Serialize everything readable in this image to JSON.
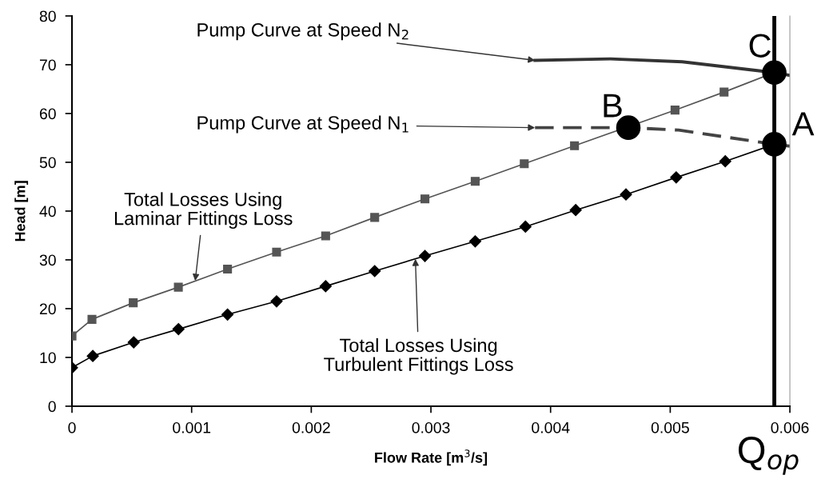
{
  "chart_data": {
    "type": "line",
    "xlabel": "Flow Rate [m$^{3}$/s]",
    "ylabel": "Head [m]",
    "xlim": [
      0,
      0.006
    ],
    "ylim": [
      0,
      80
    ],
    "xticks": [
      0,
      0.001,
      0.002,
      0.003,
      0.004,
      0.005,
      0.006
    ],
    "yticks": [
      0,
      10,
      20,
      30,
      40,
      50,
      60,
      70,
      80
    ],
    "grid": false,
    "legend": false,
    "series": [
      {
        "color": "#555555",
        "marker": "square",
        "line_style": "solid",
        "x": [
          0,
          0.000167,
          0.000512,
          0.000889,
          0.0013,
          0.00171,
          0.00212,
          0.00253,
          0.00295,
          0.00337,
          0.00378,
          0.0042,
          0.00462,
          0.00504,
          0.00545,
          0.00587
        ],
        "values": [
          14.4,
          17.8,
          21.2,
          24.4,
          28.1,
          31.6,
          34.9,
          38.7,
          42.5,
          46.1,
          49.7,
          53.4,
          null,
          60.7,
          64.4,
          68.4
        ]
      },
      {
        "color": "#000000",
        "marker": "diamond",
        "line_style": "solid",
        "x": [
          0,
          0.000174,
          0.000516,
          0.00089,
          0.0013,
          0.00171,
          0.00212,
          0.00253,
          0.00295,
          0.00337,
          0.00379,
          0.00421,
          0.00463,
          0.00505,
          0.00546,
          0.00587
        ],
        "values": [
          7.9,
          10.3,
          13.1,
          15.8,
          18.8,
          21.5,
          24.6,
          27.7,
          30.8,
          33.8,
          36.8,
          40.2,
          43.4,
          46.9,
          50.2,
          53.7
        ]
      },
      {
        "color": "#333333",
        "marker": "none",
        "line_style": "solid",
        "x": [
          0.00387,
          0.0045,
          0.0051,
          0.00587,
          0.006
        ],
        "values": [
          70.9,
          71.2,
          70.6,
          68.4,
          67.8
        ]
      },
      {
        "color": "#444444",
        "marker": "none",
        "line_style": "dashed",
        "x": [
          0.00387,
          0.00465,
          0.00507,
          0.00587,
          0.006
        ],
        "values": [
          57.1,
          57.1,
          56.6,
          53.7,
          53.3
        ]
      },
      {
        "type": "scatter",
        "color": "#000000",
        "marker": "circle",
        "x": [
          0.00587,
          0.00465,
          0.00587
        ],
        "values": [
          53.7,
          57.1,
          68.4
        ],
        "value_labels": [
          "A",
          "B",
          "C"
        ]
      }
    ],
    "ref_lines": [
      {
        "axis": "x",
        "value": 0.00587,
        "label": "Q$_{op}$",
        "color": "#000000"
      }
    ],
    "annotations": [
      {
        "text": "Pump Curve at Speed N$_{2}$",
        "x": 0.00387,
        "y": 70.9
      },
      {
        "text": "Pump Curve at Speed N$_{1}$",
        "x": 0.00387,
        "y": 57.1
      },
      {
        "text": "Total Losses Using\nLaminar Fittings Loss",
        "x": 0.00103,
        "y": 25.7
      },
      {
        "text": "Total Losses Using\nTurbulent Fittings Loss",
        "x": 0.00287,
        "y": 30.2
      }
    ]
  }
}
